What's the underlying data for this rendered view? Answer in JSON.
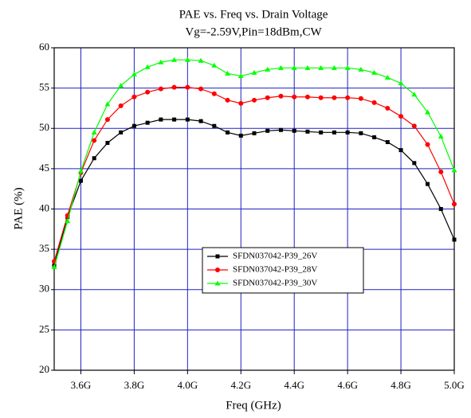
{
  "chart_data": {
    "type": "line",
    "title": "PAE vs. Freq vs. Drain Voltage",
    "subtitle": "Vg=-2.59V,Pin=18dBm,CW",
    "x_label": "Freq (GHz)",
    "y_label": "PAE (%)",
    "x": [
      3.5,
      3.55,
      3.6,
      3.65,
      3.7,
      3.75,
      3.8,
      3.85,
      3.9,
      3.95,
      4.0,
      4.05,
      4.1,
      4.15,
      4.2,
      4.25,
      4.3,
      4.35,
      4.4,
      4.45,
      4.5,
      4.55,
      4.6,
      4.65,
      4.7,
      4.75,
      4.8,
      4.85,
      4.9,
      4.95,
      5.0
    ],
    "series": [
      {
        "name": "SFDN037042-P39_26V",
        "color": "#000000",
        "marker": "square",
        "values": [
          33,
          39,
          43.5,
          46.3,
          48.2,
          49.5,
          50.3,
          50.7,
          51.1,
          51.1,
          51.1,
          50.9,
          50.3,
          49.5,
          49.1,
          49.4,
          49.7,
          49.8,
          49.7,
          49.6,
          49.5,
          49.5,
          49.5,
          49.4,
          48.9,
          48.3,
          47.3,
          45.7,
          43.1,
          40,
          36.2
        ]
      },
      {
        "name": "SFDN037042-P39_28V",
        "color": "#ff0000",
        "marker": "circle",
        "values": [
          33.5,
          39.2,
          44.5,
          48.5,
          51.1,
          52.8,
          53.9,
          54.5,
          54.9,
          55.1,
          55.1,
          54.9,
          54.3,
          53.5,
          53.1,
          53.5,
          53.8,
          54.0,
          53.9,
          53.9,
          53.8,
          53.8,
          53.8,
          53.7,
          53.2,
          52.5,
          51.5,
          50.3,
          48.0,
          44.6,
          40.6
        ]
      },
      {
        "name": "SFDN037042-P39_30V",
        "color": "#00ff00",
        "marker": "triangle",
        "values": [
          32.8,
          38.5,
          44.7,
          49.5,
          53.0,
          55.3,
          56.7,
          57.6,
          58.2,
          58.5,
          58.5,
          58.4,
          57.8,
          56.8,
          56.5,
          56.9,
          57.3,
          57.5,
          57.5,
          57.5,
          57.5,
          57.5,
          57.5,
          57.3,
          56.9,
          56.3,
          55.6,
          54.2,
          52.0,
          49.0,
          44.8
        ]
      }
    ],
    "xlim": [
      3.5,
      5.0
    ],
    "xticks": [
      {
        "value": 3.6,
        "label": "3.6G"
      },
      {
        "value": 3.8,
        "label": "3.8G"
      },
      {
        "value": 4.0,
        "label": "4.0G"
      },
      {
        "value": 4.2,
        "label": "4.2G"
      },
      {
        "value": 4.4,
        "label": "4.4G"
      },
      {
        "value": 4.6,
        "label": "4.6G"
      },
      {
        "value": 4.8,
        "label": "4.8G"
      },
      {
        "value": 5.0,
        "label": "5.0G"
      }
    ],
    "ylim": [
      20,
      60
    ],
    "yticks": [
      20,
      25,
      30,
      35,
      40,
      45,
      50,
      55,
      60
    ],
    "grid": true,
    "grid_color": "#2020c0"
  }
}
